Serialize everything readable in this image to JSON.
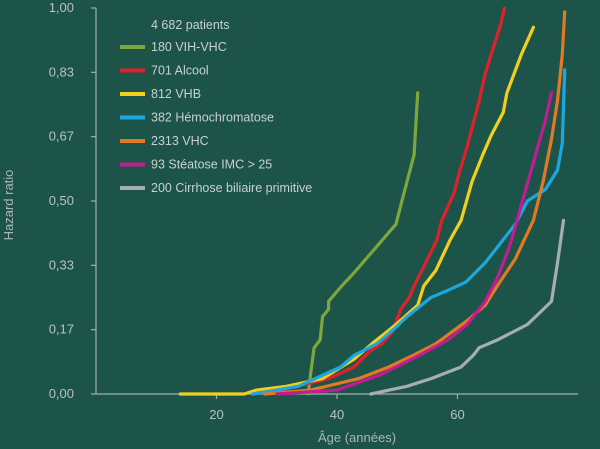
{
  "chart_data": {
    "type": "line",
    "title": "",
    "xlabel": "Âge (années)",
    "ylabel": "Hazard ratio",
    "xlim": [
      0,
      80
    ],
    "ylim": [
      0,
      1
    ],
    "x_ticks": [
      20,
      40,
      60
    ],
    "x_tick_labels": [
      "20",
      "40",
      "60"
    ],
    "y_ticks": [
      0,
      0.1667,
      0.3333,
      0.5,
      0.6667,
      0.8333,
      1
    ],
    "y_tick_labels": [
      "0,00",
      "0,17",
      "0,33",
      "0,50",
      "0,67",
      "0,83",
      "1,00"
    ],
    "legend_header": "4 682 patients",
    "legend_position": "top-left",
    "series": [
      {
        "name": "180 VIH-VHC",
        "color": "#7fa63a",
        "points": [
          [
            35.2,
            0.0
          ],
          [
            35.6,
            0.05
          ],
          [
            36.2,
            0.12
          ],
          [
            37.2,
            0.14
          ],
          [
            37.6,
            0.2
          ],
          [
            38.6,
            0.22
          ],
          [
            38.6,
            0.24
          ],
          [
            40.8,
            0.28
          ],
          [
            42.6,
            0.31
          ],
          [
            49.8,
            0.44
          ],
          [
            50.6,
            0.49
          ],
          [
            52.8,
            0.62
          ],
          [
            53.4,
            0.78
          ]
        ]
      },
      {
        "name": "701 Alcool",
        "color": "#e0212a",
        "points": [
          [
            28.0,
            0.0
          ],
          [
            38.6,
            0.04
          ],
          [
            42.8,
            0.07
          ],
          [
            45.4,
            0.11
          ],
          [
            47.4,
            0.13
          ],
          [
            49.2,
            0.16
          ],
          [
            50.6,
            0.22
          ],
          [
            52.0,
            0.25
          ],
          [
            52.8,
            0.28
          ],
          [
            54.4,
            0.33
          ],
          [
            56.6,
            0.4
          ],
          [
            57.4,
            0.45
          ],
          [
            59.4,
            0.52
          ],
          [
            60.4,
            0.58
          ],
          [
            61.6,
            0.64
          ],
          [
            63.6,
            0.76
          ],
          [
            64.6,
            0.83
          ],
          [
            66.2,
            0.91
          ],
          [
            67.2,
            0.96
          ],
          [
            67.8,
            1.0
          ]
        ]
      },
      {
        "name": "812 VHB",
        "color": "#f2ce1e",
        "points": [
          [
            14.0,
            0.0
          ],
          [
            24.6,
            0.0
          ],
          [
            26.6,
            0.01
          ],
          [
            31.6,
            0.02
          ],
          [
            37.6,
            0.04
          ],
          [
            42.8,
            0.09
          ],
          [
            45.8,
            0.13
          ],
          [
            49.8,
            0.18
          ],
          [
            53.4,
            0.23
          ],
          [
            54.4,
            0.28
          ],
          [
            56.4,
            0.32
          ],
          [
            58.8,
            0.4
          ],
          [
            60.6,
            0.45
          ],
          [
            62.4,
            0.55
          ],
          [
            64.2,
            0.62
          ],
          [
            65.6,
            0.67
          ],
          [
            67.6,
            0.73
          ],
          [
            68.2,
            0.78
          ],
          [
            70.6,
            0.88
          ],
          [
            72.6,
            0.95
          ]
        ]
      },
      {
        "name": "382 Hémochromatose",
        "color": "#1ba7e0",
        "points": [
          [
            26.0,
            0.0
          ],
          [
            33.6,
            0.02
          ],
          [
            40.6,
            0.07
          ],
          [
            42.8,
            0.1
          ],
          [
            46.6,
            0.13
          ],
          [
            49.6,
            0.17
          ],
          [
            51.6,
            0.2
          ],
          [
            55.6,
            0.25
          ],
          [
            58.6,
            0.27
          ],
          [
            61.4,
            0.29
          ],
          [
            64.6,
            0.34
          ],
          [
            67.6,
            0.4
          ],
          [
            69.6,
            0.44
          ],
          [
            71.6,
            0.5
          ],
          [
            74.6,
            0.53
          ],
          [
            76.6,
            0.58
          ],
          [
            77.4,
            0.65
          ],
          [
            77.8,
            0.84
          ]
        ]
      },
      {
        "name": "2313 VHC",
        "color": "#e37a23",
        "points": [
          [
            28.0,
            0.0
          ],
          [
            35.6,
            0.01
          ],
          [
            43.6,
            0.04
          ],
          [
            48.6,
            0.07
          ],
          [
            52.6,
            0.1
          ],
          [
            56.4,
            0.13
          ],
          [
            61.6,
            0.19
          ],
          [
            64.6,
            0.23
          ],
          [
            66.6,
            0.28
          ],
          [
            69.6,
            0.35
          ],
          [
            72.6,
            0.45
          ],
          [
            74.2,
            0.55
          ],
          [
            75.6,
            0.66
          ],
          [
            76.6,
            0.76
          ],
          [
            77.4,
            0.88
          ],
          [
            77.8,
            0.99
          ]
        ]
      },
      {
        "name": "93 Stéatose IMC > 25",
        "color": "#c21c92",
        "points": [
          [
            30.0,
            0.0
          ],
          [
            40.0,
            0.01
          ],
          [
            47.2,
            0.05
          ],
          [
            53.6,
            0.1
          ],
          [
            58.4,
            0.14
          ],
          [
            61.6,
            0.18
          ],
          [
            64.6,
            0.24
          ],
          [
            66.6,
            0.3
          ],
          [
            68.6,
            0.38
          ],
          [
            70.6,
            0.49
          ],
          [
            72.6,
            0.6
          ],
          [
            74.6,
            0.71
          ],
          [
            75.6,
            0.78
          ]
        ]
      },
      {
        "name": "200 Cirrhose biliaire primitive",
        "color": "#a6aeae",
        "points": [
          [
            45.6,
            0.0
          ],
          [
            51.6,
            0.02
          ],
          [
            55.6,
            0.04
          ],
          [
            60.6,
            0.07
          ],
          [
            62.6,
            0.1
          ],
          [
            63.6,
            0.12
          ],
          [
            66.6,
            0.14
          ],
          [
            71.6,
            0.18
          ],
          [
            75.6,
            0.24
          ],
          [
            76.6,
            0.34
          ],
          [
            77.6,
            0.45
          ]
        ]
      }
    ]
  }
}
